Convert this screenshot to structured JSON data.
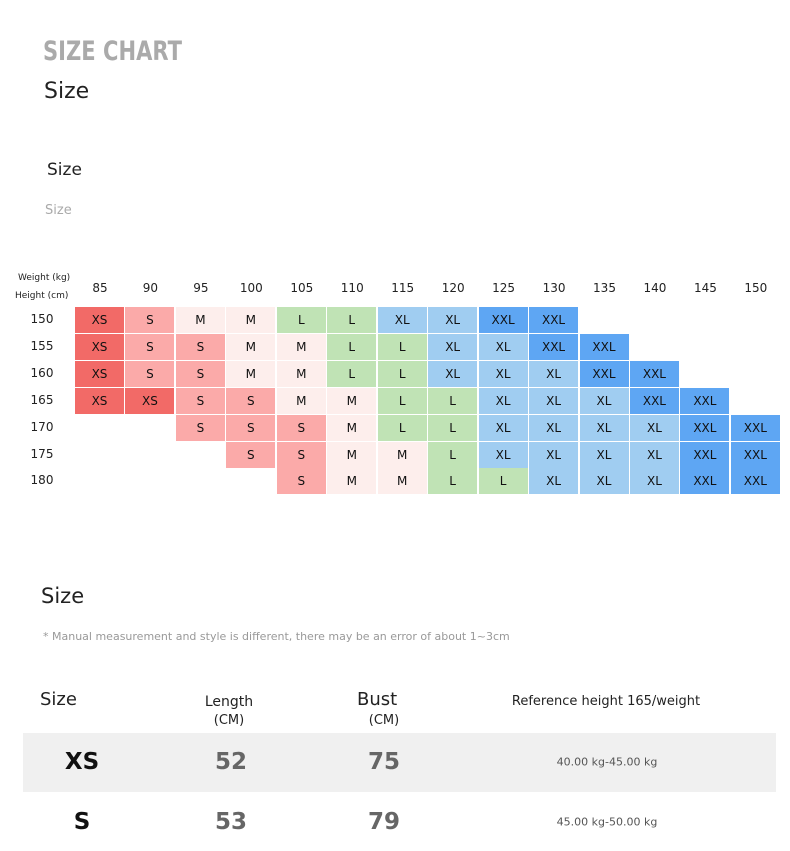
{
  "header": {
    "title": "SIZE CHART",
    "subtitle": "Size",
    "section_label": "Size",
    "caption": "Size"
  },
  "size_grid": {
    "weight_label": "Weight (kg)",
    "height_label": "Height (cm)",
    "weights": [
      85,
      90,
      95,
      100,
      105,
      110,
      115,
      120,
      125,
      130,
      135,
      140,
      145,
      150
    ],
    "size_colors": {
      "XS": "#f26a67",
      "S": "#fbaaa9",
      "M": "#fdeeec",
      "L": "#c0e3b5",
      "XL": "#a0cdf1",
      "XXL": "#5ea6f3"
    },
    "rows": [
      {
        "height": 150,
        "cells": [
          "XS",
          "S",
          "M",
          "M",
          "L",
          "L",
          "XL",
          "XL",
          "XXL",
          "XXL",
          null,
          null,
          null,
          null
        ]
      },
      {
        "height": 155,
        "cells": [
          "XS",
          "S",
          "S",
          "M",
          "M",
          "L",
          "L",
          "XL",
          "XL",
          "XXL",
          "XXL",
          null,
          null,
          null
        ]
      },
      {
        "height": 160,
        "cells": [
          "XS",
          "S",
          "S",
          "M",
          "M",
          "L",
          "L",
          "XL",
          "XL",
          "XL",
          "XXL",
          "XXL",
          null,
          null
        ]
      },
      {
        "height": 165,
        "cells": [
          "XS",
          "XS",
          "S",
          "S",
          "M",
          "M",
          "L",
          "L",
          "XL",
          "XL",
          "XL",
          "XXL",
          "XXL",
          null
        ]
      },
      {
        "height": 170,
        "cells": [
          null,
          null,
          "S",
          "S",
          "S",
          "M",
          "L",
          "L",
          "XL",
          "XL",
          "XL",
          "XL",
          "XXL",
          "XXL"
        ]
      },
      {
        "height": 175,
        "cells": [
          null,
          null,
          null,
          "S",
          "S",
          "M",
          "M",
          "L",
          "XL",
          "XL",
          "XL",
          "XL",
          "XXL",
          "XXL"
        ]
      },
      {
        "height": 180,
        "cells": [
          null,
          null,
          null,
          null,
          "S",
          "M",
          "M",
          "L",
          "L",
          "XL",
          "XL",
          "XL",
          "XXL",
          "XXL"
        ]
      }
    ]
  },
  "measure": {
    "title": "Size",
    "note": "* Manual measurement and style is different, there may be an error of about 1~3cm"
  },
  "table": {
    "columns": [
      {
        "label": "Size"
      },
      {
        "label": "Length",
        "unit": "(CM)"
      },
      {
        "label": "Bust",
        "unit": "(CM)"
      },
      {
        "label": "Reference height 165/weight"
      }
    ],
    "rows": [
      [
        "XS",
        52,
        75,
        "40.00 kg-45.00 kg"
      ],
      [
        "S",
        53,
        79,
        "45.00 kg-50.00 kg"
      ]
    ]
  }
}
